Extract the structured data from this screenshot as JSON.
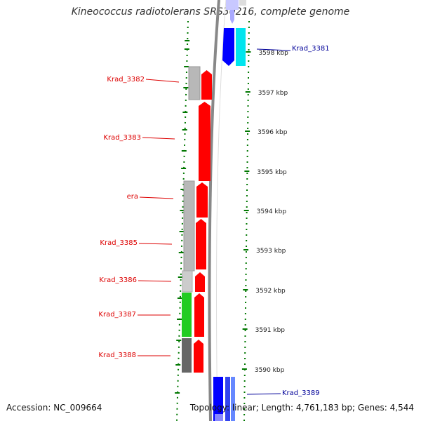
{
  "title": "Kineococcus radiotolerans SRS30216, complete genome",
  "accession": "Accession: NC_009664",
  "topology": "Topology: linear; Length: 4,761,183 bp; Genes: 4,544",
  "colors": {
    "reverse_label": "#dd0000",
    "forward_label": "#000099",
    "reverse_gene": "#ff0000",
    "forward_gene": "#0000ff",
    "cyan_gene": "#00e5ee",
    "green_gene": "#22cc22",
    "gray_gene": "#b8b8b8",
    "dark_gray_gene": "#666666",
    "tick": "#007700"
  },
  "scale": {
    "unit": "kbp",
    "ticks": [
      {
        "label": "3598 kbp",
        "value": 3598
      },
      {
        "label": "3597 kbp",
        "value": 3597
      },
      {
        "label": "3596 kbp",
        "value": 3596
      },
      {
        "label": "3595 kbp",
        "value": 3595
      },
      {
        "label": "3594 kbp",
        "value": 3594
      },
      {
        "label": "3593 kbp",
        "value": 3593
      },
      {
        "label": "3592 kbp",
        "value": 3592
      },
      {
        "label": "3591 kbp",
        "value": 3591
      },
      {
        "label": "3590 kbp",
        "value": 3590
      }
    ]
  },
  "genes": [
    {
      "name": "Krad_3381",
      "strand": "forward",
      "labeled": true
    },
    {
      "name": "Krad_3382",
      "strand": "reverse",
      "labeled": true
    },
    {
      "name": "Krad_3383",
      "strand": "reverse",
      "labeled": true
    },
    {
      "name": "era",
      "strand": "reverse",
      "labeled": true
    },
    {
      "name": "Krad_3385",
      "strand": "reverse",
      "labeled": true
    },
    {
      "name": "Krad_3386",
      "strand": "reverse",
      "labeled": true
    },
    {
      "name": "Krad_3387",
      "strand": "reverse",
      "labeled": true
    },
    {
      "name": "Krad_3388",
      "strand": "reverse",
      "labeled": true
    },
    {
      "name": "Krad_3389",
      "strand": "forward",
      "labeled": true
    }
  ]
}
